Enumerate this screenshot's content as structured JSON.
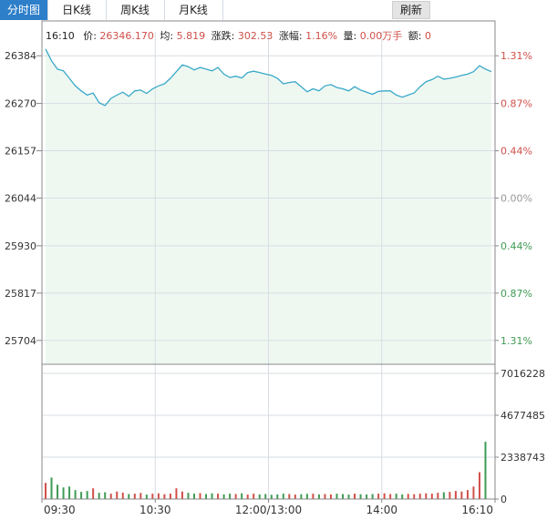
{
  "tabs": [
    {
      "label": "分时图",
      "active": true
    },
    {
      "label": "日K线",
      "active": false
    },
    {
      "label": "周K线",
      "active": false
    },
    {
      "label": "月K线",
      "active": false
    }
  ],
  "refresh_label": "刷新",
  "info": {
    "time": "16:10",
    "price_label": "价:",
    "price": "26346.170",
    "avg_label": "均:",
    "avg": "5.819",
    "change_label": "涨跌:",
    "change": "302.53",
    "pct_label": "涨幅:",
    "pct": "1.16%",
    "vol_label": "量:",
    "vol": "0.00万手",
    "amount_label": "额:",
    "amount": "0"
  },
  "colors": {
    "line": "#3aa9c9",
    "area": "#eef8f1",
    "up": "#d0504a",
    "down": "#3f9b54",
    "grid": "#d7dde3",
    "frame": "#8a8a8a"
  },
  "chart_data": {
    "type": "line",
    "ylim": [
      25647,
      26441
    ],
    "price_ticks": [
      "26384",
      "26270",
      "26157",
      "26044",
      "25930",
      "25817",
      "25704"
    ],
    "price_tick_values": [
      26384,
      26270,
      26157,
      26044,
      25930,
      25817,
      25704
    ],
    "pct_ticks": [
      "1.31%",
      "0.87%",
      "0.44%",
      "0.00%",
      "0.44%",
      "0.87%",
      "1.31%"
    ],
    "pct_tick_colors": [
      "up",
      "up",
      "up",
      "neutral",
      "down",
      "down",
      "down"
    ],
    "volume_ticks": [
      "7016228",
      "4677485",
      "2338743",
      "0"
    ],
    "volume_tick_values": [
      7016228,
      4677485,
      2338743,
      0
    ],
    "volume_max": 7016228,
    "x_ticks": [
      "09:30",
      "10:30",
      "12:00/13:00",
      "14:00",
      "16:10"
    ],
    "x_tick_pos": [
      0,
      0.25,
      0.5,
      0.75,
      1
    ],
    "price_series": [
      26400,
      26372,
      26352,
      26348,
      26330,
      26312,
      26300,
      26290,
      26295,
      26272,
      26265,
      26282,
      26290,
      26297,
      26287,
      26300,
      26302,
      26294,
      26305,
      26312,
      26317,
      26330,
      26346,
      26362,
      26358,
      26350,
      26356,
      26352,
      26348,
      26356,
      26340,
      26332,
      26335,
      26331,
      26344,
      26347,
      26344,
      26340,
      26337,
      26330,
      26317,
      26320,
      26322,
      26310,
      26298,
      26305,
      26300,
      26312,
      26315,
      26308,
      26305,
      26300,
      26310,
      26302,
      26297,
      26292,
      26299,
      26300,
      26300,
      26290,
      26285,
      26290,
      26295,
      26310,
      26322,
      26327,
      26335,
      26328,
      26330,
      26333,
      26337,
      26340,
      26346,
      26360,
      26352,
      26346
    ],
    "volume_series": [
      900000,
      1200000,
      800000,
      650000,
      700000,
      500000,
      400000,
      450000,
      600000,
      350000,
      380000,
      300000,
      420000,
      360000,
      280000,
      300000,
      340000,
      250000,
      300000,
      320000,
      270000,
      300000,
      600000,
      420000,
      350000,
      300000,
      330000,
      280000,
      320000,
      300000,
      260000,
      300000,
      280000,
      320000,
      250000,
      300000,
      260000,
      280000,
      240000,
      260000,
      300000,
      280000,
      250000,
      270000,
      290000,
      300000,
      260000,
      280000,
      260000,
      300000,
      280000,
      250000,
      300000,
      270000,
      260000,
      280000,
      300000,
      320000,
      280000,
      300000,
      260000,
      290000,
      270000,
      300000,
      320000,
      300000,
      350000,
      380000,
      400000,
      450000,
      420000,
      500000,
      700000,
      1500000,
      3200000,
      0
    ]
  }
}
